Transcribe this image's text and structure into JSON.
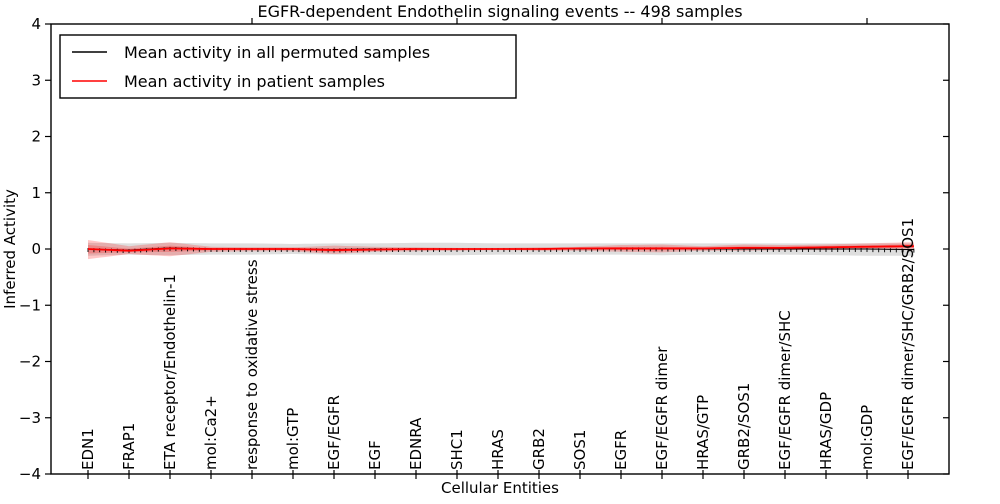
{
  "chart_data": {
    "type": "line",
    "title": "EGFR-dependent Endothelin signaling events -- 498 samples",
    "xlabel": "Cellular Entities",
    "ylabel": "Inferred Activity",
    "ylim": [
      -4,
      4
    ],
    "yticks": [
      "4",
      "3",
      "2",
      "1",
      "0",
      "−1",
      "−2",
      "−3",
      "−4"
    ],
    "categories": [
      "EDN1",
      "FRAP1",
      "ETA receptor/Endothelin-1",
      "mol:Ca2+",
      "response to oxidative stress",
      "mol:GTP",
      "EGF/EGFR",
      "EGF",
      "EDNRA",
      "SHC1",
      "HRAS",
      "GRB2",
      "SOS1",
      "EGFR",
      "EGF/EGFR dimer",
      "HRAS/GTP",
      "GRB2/SOS1",
      "EGF/EGFR dimer/SHC",
      "HRAS/GDP",
      "mol:GDP",
      "EGF/EGFR dimer/SHC/GRB2/SOS1"
    ],
    "n_points": 142,
    "label_every": 7,
    "top_tick_category_indexes": [
      4,
      9,
      14,
      19
    ],
    "grid": false,
    "legend_position": "upper left",
    "series": [
      {
        "name": "Mean activity in all permuted samples",
        "color": "#000000",
        "line_width": 1.0,
        "markers": "tick",
        "band_color": "#999999",
        "band_opacity": 0.32,
        "double_band": false,
        "mean": [
          0.0,
          -0.02,
          0.02,
          0.0,
          0.0,
          0.0,
          -0.01,
          0.0,
          0.0,
          0.0,
          0.0,
          0.0,
          0.0,
          0.01,
          0.01,
          0.0,
          0.0,
          0.0,
          0.0,
          0.0,
          -0.01
        ],
        "band_upper": [
          0.11,
          0.1,
          0.11,
          0.1,
          0.1,
          0.09,
          0.1,
          0.1,
          0.11,
          0.11,
          0.1,
          0.1,
          0.1,
          0.1,
          0.1,
          0.1,
          0.1,
          0.1,
          0.1,
          0.1,
          0.1
        ],
        "band_lower": [
          -0.12,
          -0.1,
          -0.11,
          -0.1,
          -0.1,
          -0.09,
          -0.1,
          -0.1,
          -0.11,
          -0.11,
          -0.1,
          -0.1,
          -0.1,
          -0.1,
          -0.11,
          -0.1,
          -0.1,
          -0.1,
          -0.11,
          -0.12,
          -0.12
        ]
      },
      {
        "name": "Mean activity in patient samples",
        "color": "#ff0000",
        "line_width": 1.8,
        "markers": "none",
        "band_color": "#ff0000",
        "band_opacity": 0.22,
        "double_band": true,
        "mean": [
          0.0,
          -0.03,
          0.01,
          0.0,
          0.0,
          0.0,
          -0.02,
          -0.01,
          0.0,
          0.0,
          0.0,
          0.0,
          0.01,
          0.01,
          0.01,
          0.01,
          0.02,
          0.02,
          0.03,
          0.04,
          0.05
        ],
        "band_upper": [
          0.16,
          0.05,
          0.12,
          0.04,
          0.03,
          0.03,
          0.06,
          0.04,
          0.03,
          0.02,
          0.02,
          0.03,
          0.04,
          0.07,
          0.08,
          0.05,
          0.08,
          0.07,
          0.08,
          0.1,
          0.12
        ],
        "band_lower": [
          -0.18,
          -0.09,
          -0.13,
          -0.05,
          -0.04,
          -0.04,
          -0.09,
          -0.05,
          -0.04,
          -0.03,
          -0.02,
          -0.03,
          -0.03,
          -0.05,
          -0.06,
          -0.03,
          -0.03,
          -0.02,
          -0.02,
          -0.01,
          -0.02
        ]
      }
    ],
    "legend": {
      "entries": [
        "Mean activity in all permuted samples",
        "Mean activity in patient samples"
      ]
    }
  }
}
